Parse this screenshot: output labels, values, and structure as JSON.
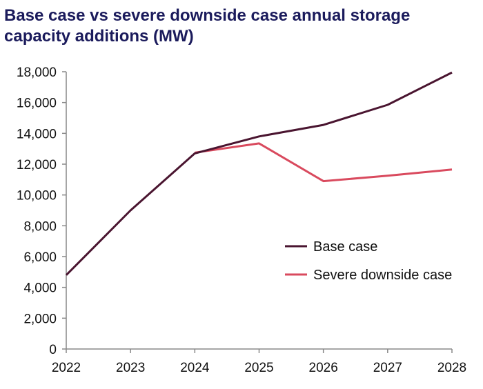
{
  "chart_data": {
    "type": "line",
    "title": "Base case vs severe downside case annual storage capacity additions (MW)",
    "xlabel": "",
    "ylabel": "",
    "categories": [
      "2022",
      "2023",
      "2024",
      "2025",
      "2026",
      "2027",
      "2028"
    ],
    "series": [
      {
        "name": "Base case",
        "color": "#4a1530",
        "values": [
          4800,
          9000,
          12700,
          13800,
          14550,
          15850,
          17950
        ]
      },
      {
        "name": "Severe downside case",
        "color": "#d94a5e",
        "values": [
          null,
          null,
          12750,
          13350,
          10900,
          11250,
          11650
        ]
      }
    ],
    "ylim": [
      0,
      18000
    ],
    "yticks": [
      "0",
      "2,000",
      "4,000",
      "6,000",
      "8,000",
      "10,000",
      "12,000",
      "14,000",
      "16,000",
      "18,000"
    ],
    "grid": false,
    "legend": "right, middle"
  }
}
